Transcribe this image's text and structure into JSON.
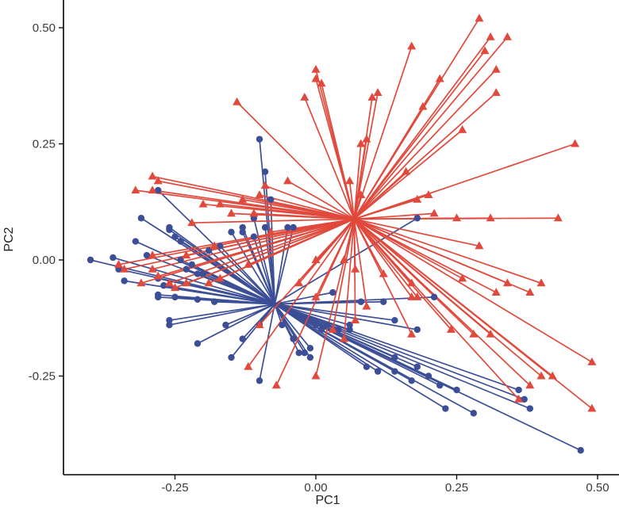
{
  "chart_data": {
    "type": "scatter",
    "subtype": "biplot-centroid-spokes",
    "title": "",
    "xlabel": "PC1",
    "ylabel": "PC2",
    "xlim": [
      -0.44,
      0.53
    ],
    "ylim": [
      -0.45,
      0.56
    ],
    "x_ticks": [
      -0.25,
      0.0,
      0.25,
      0.5
    ],
    "x_tick_labels": [
      "-0.25",
      "0.00",
      "0.25",
      "0.50"
    ],
    "y_ticks": [
      -0.25,
      0.0,
      0.25,
      0.5
    ],
    "y_tick_labels": [
      "-0.25",
      "0.00",
      "0.25",
      "0.50"
    ],
    "grid": false,
    "legend": "none",
    "series": [
      {
        "color": "#3C4E95",
        "marker": "circle",
        "centroid": [
          -0.073,
          -0.095
        ],
        "points": [
          [
            -0.4,
            0.0
          ],
          [
            -0.36,
            0.005
          ],
          [
            -0.34,
            -0.045
          ],
          [
            -0.35,
            -0.02
          ],
          [
            -0.32,
            0.04
          ],
          [
            -0.31,
            0.09
          ],
          [
            -0.3,
            0.01
          ],
          [
            -0.28,
            0.15
          ],
          [
            -0.26,
            0.07
          ],
          [
            -0.26,
            0.065
          ],
          [
            -0.25,
            0.05
          ],
          [
            -0.24,
            0.04
          ],
          [
            -0.24,
            0.0
          ],
          [
            -0.22,
            -0.01
          ],
          [
            -0.23,
            -0.02
          ],
          [
            -0.21,
            -0.03
          ],
          [
            -0.2,
            -0.03
          ],
          [
            -0.19,
            0.02
          ],
          [
            -0.17,
            0.03
          ],
          [
            -0.15,
            0.06
          ],
          [
            -0.13,
            0.06
          ],
          [
            -0.13,
            0.07
          ],
          [
            -0.11,
            0.05
          ],
          [
            -0.11,
            0.09
          ],
          [
            -0.09,
            0.07
          ],
          [
            -0.1,
            0.26
          ],
          [
            -0.09,
            0.19
          ],
          [
            -0.08,
            0.13
          ],
          [
            -0.05,
            0.07
          ],
          [
            -0.04,
            0.07
          ],
          [
            -0.28,
            -0.04
          ],
          [
            -0.27,
            -0.055
          ],
          [
            -0.28,
            -0.075
          ],
          [
            -0.28,
            -0.08
          ],
          [
            -0.25,
            -0.08
          ],
          [
            -0.21,
            -0.085
          ],
          [
            -0.18,
            -0.09
          ],
          [
            -0.26,
            -0.13
          ],
          [
            -0.26,
            -0.14
          ],
          [
            -0.21,
            -0.18
          ],
          [
            -0.16,
            -0.14
          ],
          [
            -0.15,
            -0.21
          ],
          [
            -0.13,
            -0.17
          ],
          [
            -0.1,
            -0.26
          ],
          [
            -0.1,
            -0.14
          ],
          [
            -0.06,
            -0.14
          ],
          [
            -0.04,
            -0.17
          ],
          [
            -0.03,
            -0.2
          ],
          [
            -0.02,
            -0.2
          ],
          [
            -0.01,
            -0.21
          ],
          [
            0.01,
            -0.15
          ],
          [
            0.04,
            -0.15
          ],
          [
            0.06,
            -0.14
          ],
          [
            0.08,
            -0.09
          ],
          [
            0.03,
            -0.07
          ],
          [
            0.12,
            -0.09
          ],
          [
            0.14,
            -0.13
          ],
          [
            0.18,
            0.09
          ],
          [
            0.21,
            -0.08
          ],
          [
            0.18,
            -0.15
          ],
          [
            0.14,
            -0.21
          ],
          [
            0.18,
            -0.23
          ],
          [
            0.2,
            -0.25
          ],
          [
            0.22,
            -0.27
          ],
          [
            0.25,
            -0.28
          ],
          [
            0.23,
            -0.32
          ],
          [
            0.28,
            -0.33
          ],
          [
            0.17,
            -0.26
          ],
          [
            0.14,
            -0.24
          ],
          [
            0.11,
            -0.24
          ],
          [
            0.09,
            -0.23
          ],
          [
            0.36,
            -0.28
          ],
          [
            0.37,
            -0.3
          ],
          [
            0.38,
            -0.32
          ],
          [
            0.47,
            -0.41
          ],
          [
            0.06,
            -0.15
          ],
          [
            -0.01,
            -0.19
          ],
          [
            0.02,
            -0.14
          ],
          [
            0.0,
            -0.14
          ]
        ]
      },
      {
        "color": "#E0493C",
        "marker": "triangle",
        "centroid": [
          0.068,
          0.088
        ],
        "points": [
          [
            0.29,
            0.52
          ],
          [
            0.31,
            0.48
          ],
          [
            0.34,
            0.48
          ],
          [
            0.3,
            0.45
          ],
          [
            0.32,
            0.41
          ],
          [
            0.32,
            0.36
          ],
          [
            0.26,
            0.28
          ],
          [
            0.22,
            0.39
          ],
          [
            0.19,
            0.33
          ],
          [
            0.17,
            0.46
          ],
          [
            0.11,
            0.36
          ],
          [
            0.1,
            0.35
          ],
          [
            0.0,
            0.41
          ],
          [
            0.01,
            0.38
          ],
          [
            0.0,
            0.39
          ],
          [
            -0.02,
            0.35
          ],
          [
            -0.14,
            0.34
          ],
          [
            0.09,
            0.26
          ],
          [
            0.08,
            0.25
          ],
          [
            0.06,
            0.17
          ],
          [
            0.08,
            0.14
          ],
          [
            0.16,
            0.19
          ],
          [
            0.18,
            0.13
          ],
          [
            0.2,
            0.14
          ],
          [
            0.46,
            0.25
          ],
          [
            0.43,
            0.09
          ],
          [
            0.31,
            0.09
          ],
          [
            0.25,
            0.09
          ],
          [
            0.29,
            0.03
          ],
          [
            0.21,
            0.1
          ],
          [
            -0.05,
            0.17
          ],
          [
            -0.09,
            0.16
          ],
          [
            -0.1,
            0.14
          ],
          [
            -0.13,
            0.13
          ],
          [
            -0.29,
            0.18
          ],
          [
            -0.28,
            0.17
          ],
          [
            -0.32,
            0.15
          ],
          [
            -0.29,
            0.15
          ],
          [
            -0.2,
            0.12
          ],
          [
            -0.17,
            0.12
          ],
          [
            -0.15,
            0.1
          ],
          [
            -0.11,
            0.1
          ],
          [
            -0.22,
            0.08
          ],
          [
            -0.18,
            0.03
          ],
          [
            -0.12,
            -0.01
          ],
          [
            -0.08,
            0.06
          ],
          [
            -0.23,
            0.01
          ],
          [
            -0.29,
            0.01
          ],
          [
            -0.35,
            -0.01
          ],
          [
            -0.34,
            -0.02
          ],
          [
            -0.29,
            -0.02
          ],
          [
            -0.28,
            -0.035
          ],
          [
            -0.26,
            -0.05
          ],
          [
            -0.23,
            -0.05
          ],
          [
            -0.25,
            -0.06
          ],
          [
            -0.31,
            -0.05
          ],
          [
            -0.19,
            -0.05
          ],
          [
            -0.17,
            -0.04
          ],
          [
            0.0,
            0.0
          ],
          [
            -0.03,
            -0.05
          ],
          [
            0.0,
            -0.08
          ],
          [
            0.05,
            0.0
          ],
          [
            0.07,
            -0.02
          ],
          [
            0.09,
            -0.1
          ],
          [
            0.12,
            -0.03
          ],
          [
            0.17,
            -0.05
          ],
          [
            0.17,
            -0.08
          ],
          [
            0.18,
            -0.08
          ],
          [
            0.26,
            -0.04
          ],
          [
            0.32,
            -0.07
          ],
          [
            0.38,
            -0.07
          ],
          [
            0.4,
            -0.05
          ],
          [
            0.34,
            -0.05
          ],
          [
            0.31,
            -0.16
          ],
          [
            0.28,
            -0.16
          ],
          [
            0.24,
            -0.15
          ],
          [
            0.17,
            -0.16
          ],
          [
            0.07,
            -0.13
          ],
          [
            0.03,
            -0.15
          ],
          [
            0.05,
            -0.17
          ],
          [
            0.0,
            -0.25
          ],
          [
            -0.07,
            -0.27
          ],
          [
            -0.12,
            -0.23
          ],
          [
            -0.1,
            -0.14
          ],
          [
            0.36,
            -0.3
          ],
          [
            0.42,
            -0.25
          ],
          [
            0.49,
            -0.32
          ],
          [
            0.49,
            -0.22
          ],
          [
            0.4,
            -0.25
          ],
          [
            0.38,
            -0.27
          ]
        ]
      }
    ]
  }
}
